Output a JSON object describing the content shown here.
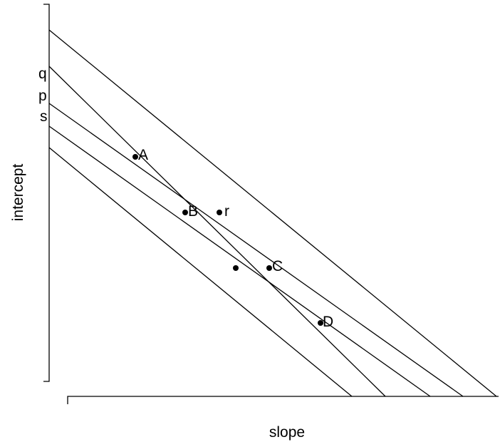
{
  "diagram": {
    "axes": {
      "x_label": "slope",
      "y_label": "intercept"
    },
    "line_labels": [
      "q",
      "p",
      "s"
    ],
    "points": [
      {
        "name": "A",
        "label": "A"
      },
      {
        "name": "B",
        "label": "B"
      },
      {
        "name": "r",
        "label": "r"
      },
      {
        "name": "C",
        "label": "C"
      },
      {
        "name": "D",
        "label": "D"
      },
      {
        "name": "unlabeled",
        "label": ""
      }
    ],
    "line_count": 5,
    "color": "#000000"
  }
}
